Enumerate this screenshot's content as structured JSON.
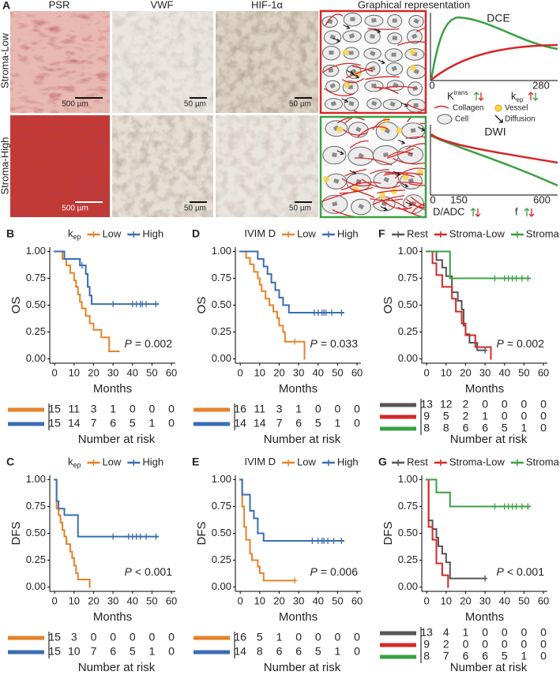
{
  "panel_a": {
    "label": "A",
    "columns": [
      "PSR",
      "VWF",
      "HIF-1α",
      "Graphical representation"
    ],
    "rows": [
      "Stroma-Low",
      "Stroma-High"
    ],
    "scale_bars": [
      "500 µm",
      "50 µm",
      "50 µm",
      "500 µm",
      "50 µm",
      "50 µm"
    ],
    "dce": {
      "title": "DCE",
      "ticks": [
        "0",
        "280"
      ],
      "ktrans": {
        "base": "K",
        "sup": "trans"
      },
      "kep": {
        "base": "k",
        "sub": "ep"
      }
    },
    "legend": [
      "Collagen",
      "Vessel",
      "Cell",
      "Diffusion"
    ],
    "dwi": {
      "title": "DWI",
      "ticks": [
        "0",
        "150",
        "600"
      ],
      "params": [
        "D/ADC",
        "f"
      ]
    }
  },
  "chart_data": [
    {
      "type": "km",
      "panel": "B",
      "legend_title": "k",
      "legend_title_sub": "ep",
      "ylabel": "OS",
      "xlabel": "Months",
      "risk_label": "Number at risk",
      "p_label": "P",
      "p_text": "= 0.002",
      "xlim": [
        -2.5,
        62
      ],
      "ylim": [
        -0.04,
        1.04
      ],
      "xticks": [
        0,
        10,
        20,
        30,
        40,
        50,
        60
      ],
      "yticks": [
        {
          "value": 0,
          "label": "0.00"
        },
        {
          "value": 0.25,
          "label": "0.25"
        },
        {
          "value": 0.5,
          "label": "0.50"
        },
        {
          "value": 0.75,
          "label": "0.75"
        },
        {
          "value": 1,
          "label": "1.00"
        }
      ],
      "series": [
        {
          "name": "Low",
          "color": "#e6822a",
          "x": [
            0,
            4,
            6,
            8,
            10,
            11,
            12,
            13,
            14,
            16,
            18,
            20,
            24,
            28,
            33
          ],
          "values": [
            1,
            0.93,
            0.87,
            0.8,
            0.73,
            0.67,
            0.6,
            0.53,
            0.47,
            0.4,
            0.33,
            0.27,
            0.2,
            0.07,
            0.07
          ],
          "censored": [],
          "at_risk": [
            15,
            11,
            3,
            1,
            0,
            0,
            0
          ]
        },
        {
          "name": "High",
          "color": "#3b6db3",
          "x": [
            0,
            5,
            13,
            16,
            17,
            18,
            19,
            53
          ],
          "values": [
            1,
            0.93,
            0.87,
            0.79,
            0.67,
            0.59,
            0.51,
            0.51
          ],
          "censored": [
            14,
            30,
            40,
            42,
            44,
            45,
            47,
            52
          ],
          "at_risk": [
            15,
            14,
            7,
            6,
            5,
            1,
            0
          ]
        }
      ]
    },
    {
      "type": "km",
      "panel": "D",
      "legend_title": "IVIM D",
      "ylabel": "OS",
      "xlabel": "Months",
      "risk_label": "Number at risk",
      "p_label": "P",
      "p_text": "= 0.033",
      "xlim": [
        -2.5,
        62
      ],
      "ylim": [
        -0.04,
        1.04
      ],
      "xticks": [
        0,
        10,
        20,
        30,
        40,
        50,
        60
      ],
      "yticks": [
        {
          "value": 0,
          "label": "0.00"
        },
        {
          "value": 0.25,
          "label": "0.25"
        },
        {
          "value": 0.5,
          "label": "0.50"
        },
        {
          "value": 0.75,
          "label": "0.75"
        },
        {
          "value": 1,
          "label": "1.00"
        }
      ],
      "series": [
        {
          "name": "Low",
          "color": "#e6822a",
          "x": [
            0,
            3,
            5,
            7,
            9,
            10,
            11,
            13,
            15,
            17,
            19,
            20,
            22,
            23,
            33
          ],
          "values": [
            1,
            0.94,
            0.88,
            0.81,
            0.75,
            0.69,
            0.63,
            0.56,
            0.5,
            0.44,
            0.38,
            0.31,
            0.25,
            0.16,
            0
          ],
          "censored": [
            28
          ],
          "at_risk": [
            16,
            11,
            3,
            1,
            0,
            0,
            0
          ]
        },
        {
          "name": "High",
          "color": "#3b6db3",
          "x": [
            0,
            9,
            12,
            14,
            16,
            18,
            20,
            22,
            25,
            53
          ],
          "values": [
            1,
            0.93,
            0.86,
            0.79,
            0.71,
            0.64,
            0.57,
            0.5,
            0.43,
            0.43
          ],
          "censored": [
            38,
            40,
            42,
            43,
            44,
            47,
            52
          ],
          "at_risk": [
            14,
            14,
            7,
            6,
            5,
            1,
            0
          ]
        }
      ]
    },
    {
      "type": "km",
      "panel": "F",
      "ylabel": "OS",
      "xlabel": "Months",
      "risk_label": "Number at risk",
      "p_label": "P",
      "p_text": "= 0.002",
      "xlim": [
        -2.5,
        62
      ],
      "ylim": [
        -0.04,
        1.04
      ],
      "xticks": [
        0,
        10,
        20,
        30,
        40,
        50,
        60
      ],
      "yticks": [
        {
          "value": 0,
          "label": "0.00"
        },
        {
          "value": 0.25,
          "label": "0.25"
        },
        {
          "value": 0.5,
          "label": "0.50"
        },
        {
          "value": 0.75,
          "label": "0.75"
        },
        {
          "value": 1,
          "label": "1.00"
        }
      ],
      "series": [
        {
          "name": "Rest",
          "color": "#555555",
          "x": [
            0,
            5,
            8,
            10,
            13,
            16,
            18,
            19,
            20,
            22,
            26,
            30
          ],
          "values": [
            1,
            0.92,
            0.85,
            0.77,
            0.62,
            0.54,
            0.46,
            0.31,
            0.23,
            0.15,
            0.08,
            0.08
          ],
          "censored": [
            30
          ],
          "at_risk": [
            13,
            12,
            2,
            0,
            0,
            0,
            0
          ]
        },
        {
          "name": "Stroma-Low",
          "color": "#d62728",
          "x": [
            0,
            3,
            5,
            8,
            13,
            15,
            18,
            20,
            25,
            33
          ],
          "values": [
            1,
            0.89,
            0.78,
            0.67,
            0.56,
            0.44,
            0.33,
            0.22,
            0.11,
            0
          ],
          "censored": [],
          "at_risk": [
            9,
            5,
            2,
            1,
            0,
            0,
            0
          ]
        },
        {
          "name": "Stroma-High",
          "color": "#3aa043",
          "x": [
            0,
            12,
            53
          ],
          "values": [
            1,
            0.75,
            0.75
          ],
          "censored": [
            35,
            40,
            42,
            44,
            46,
            49,
            52
          ],
          "at_risk": [
            8,
            8,
            6,
            6,
            5,
            1,
            0
          ]
        }
      ]
    },
    {
      "type": "km",
      "panel": "C",
      "legend_title": "k",
      "legend_title_sub": "ep",
      "ylabel": "DFS",
      "xlabel": "Months",
      "risk_label": "Number at risk",
      "p_label": "P",
      "p_text": "< 0.001",
      "xlim": [
        -2.5,
        62
      ],
      "ylim": [
        -0.04,
        1.04
      ],
      "xticks": [
        0,
        10,
        20,
        30,
        40,
        50,
        60
      ],
      "yticks": [
        {
          "value": 0,
          "label": "0.00"
        },
        {
          "value": 0.25,
          "label": "0.25"
        },
        {
          "value": 0.5,
          "label": "0.50"
        },
        {
          "value": 0.75,
          "label": "0.75"
        },
        {
          "value": 1,
          "label": "1.00"
        }
      ],
      "series": [
        {
          "name": "Low",
          "color": "#e6822a",
          "x": [
            0,
            1,
            2,
            3,
            4,
            5,
            6,
            8,
            9,
            10,
            11,
            12,
            18
          ],
          "values": [
            1,
            0.73,
            0.67,
            0.6,
            0.53,
            0.47,
            0.4,
            0.33,
            0.27,
            0.2,
            0.13,
            0.07,
            0
          ],
          "censored": [],
          "at_risk": [
            15,
            3,
            0,
            0,
            0,
            0,
            0
          ]
        },
        {
          "name": "High",
          "color": "#3b6db3",
          "x": [
            0,
            1,
            2,
            5,
            12,
            53
          ],
          "values": [
            1,
            0.8,
            0.73,
            0.67,
            0.47,
            0.47
          ],
          "censored": [
            30,
            38,
            40,
            42,
            44,
            47,
            52
          ],
          "at_risk": [
            15,
            10,
            7,
            6,
            5,
            1,
            0
          ]
        }
      ]
    },
    {
      "type": "km",
      "panel": "E",
      "legend_title": "IVIM D",
      "ylabel": "DFS",
      "xlabel": "Months",
      "risk_label": "Number at risk",
      "p_label": "P",
      "p_text": "= 0.006",
      "xlim": [
        -2.5,
        62
      ],
      "ylim": [
        -0.04,
        1.04
      ],
      "xticks": [
        0,
        10,
        20,
        30,
        40,
        50,
        60
      ],
      "yticks": [
        {
          "value": 0,
          "label": "0.00"
        },
        {
          "value": 0.25,
          "label": "0.25"
        },
        {
          "value": 0.5,
          "label": "0.50"
        },
        {
          "value": 0.75,
          "label": "0.75"
        },
        {
          "value": 1,
          "label": "1.00"
        }
      ],
      "series": [
        {
          "name": "Low",
          "color": "#e6822a",
          "x": [
            0,
            1,
            2,
            3,
            5,
            6,
            9,
            10,
            12,
            28
          ],
          "values": [
            1,
            0.75,
            0.56,
            0.44,
            0.31,
            0.25,
            0.19,
            0.13,
            0.06,
            0.06
          ],
          "censored": [
            28
          ],
          "at_risk": [
            16,
            5,
            1,
            0,
            0,
            0,
            0
          ]
        },
        {
          "name": "High",
          "color": "#3b6db3",
          "x": [
            0,
            1,
            5,
            7,
            9,
            12,
            53
          ],
          "values": [
            1,
            0.86,
            0.71,
            0.64,
            0.5,
            0.43,
            0.43
          ],
          "censored": [
            37,
            40,
            42,
            43,
            45,
            48,
            52
          ],
          "at_risk": [
            14,
            8,
            6,
            6,
            5,
            1,
            0
          ]
        }
      ]
    },
    {
      "type": "km",
      "panel": "G",
      "ylabel": "DFS",
      "xlabel": "Months",
      "risk_label": "Number at risk",
      "p_label": "P",
      "p_text": "< 0.001",
      "xlim": [
        -2.5,
        62
      ],
      "ylim": [
        -0.04,
        1.04
      ],
      "xticks": [
        0,
        10,
        20,
        30,
        40,
        50,
        60
      ],
      "yticks": [
        {
          "value": 0,
          "label": "0.00"
        },
        {
          "value": 0.25,
          "label": "0.25"
        },
        {
          "value": 0.5,
          "label": "0.50"
        },
        {
          "value": 0.75,
          "label": "0.75"
        },
        {
          "value": 1,
          "label": "1.00"
        }
      ],
      "series": [
        {
          "name": "Rest",
          "color": "#555555",
          "x": [
            0,
            1,
            3,
            5,
            6,
            8,
            10,
            12,
            30
          ],
          "values": [
            1,
            0.62,
            0.54,
            0.46,
            0.38,
            0.31,
            0.23,
            0.08,
            0.08
          ],
          "censored": [
            30
          ],
          "at_risk": [
            13,
            4,
            1,
            0,
            0,
            0,
            0
          ]
        },
        {
          "name": "Stroma-Low",
          "color": "#d62728",
          "x": [
            0,
            1,
            3,
            5,
            8,
            11
          ],
          "values": [
            1,
            0.56,
            0.44,
            0.22,
            0.11,
            0
          ],
          "censored": [],
          "at_risk": [
            9,
            2,
            0,
            0,
            0,
            0,
            0
          ]
        },
        {
          "name": "Stroma-High",
          "color": "#3aa043",
          "x": [
            0,
            5,
            12,
            53
          ],
          "values": [
            1,
            0.88,
            0.75,
            0.75
          ],
          "censored": [
            35,
            40,
            42,
            44,
            46,
            49,
            52
          ],
          "at_risk": [
            8,
            7,
            6,
            6,
            5,
            1,
            0
          ]
        }
      ]
    }
  ]
}
